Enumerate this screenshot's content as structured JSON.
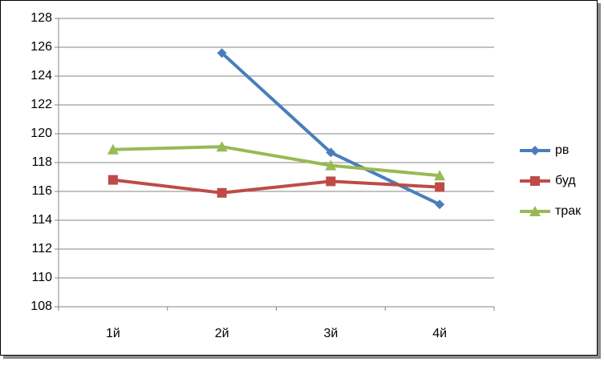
{
  "chart_data": {
    "type": "line",
    "categories": [
      "1й",
      "2й",
      "3й",
      "4й"
    ],
    "series": [
      {
        "name": "рв",
        "color": "#4a7ebb",
        "marker": "diamond",
        "values": [
          null,
          125.6,
          118.7,
          115.1
        ]
      },
      {
        "name": "буд",
        "color": "#be4b48",
        "marker": "square",
        "values": [
          116.8,
          115.9,
          116.7,
          116.3
        ]
      },
      {
        "name": "трак",
        "color": "#98b954",
        "marker": "triangle",
        "values": [
          118.9,
          119.1,
          117.8,
          117.1
        ]
      }
    ],
    "ylim": [
      108,
      128
    ],
    "yticks": [
      108,
      110,
      112,
      114,
      116,
      118,
      120,
      122,
      124,
      126,
      128
    ],
    "grid": true,
    "legend": "right"
  }
}
